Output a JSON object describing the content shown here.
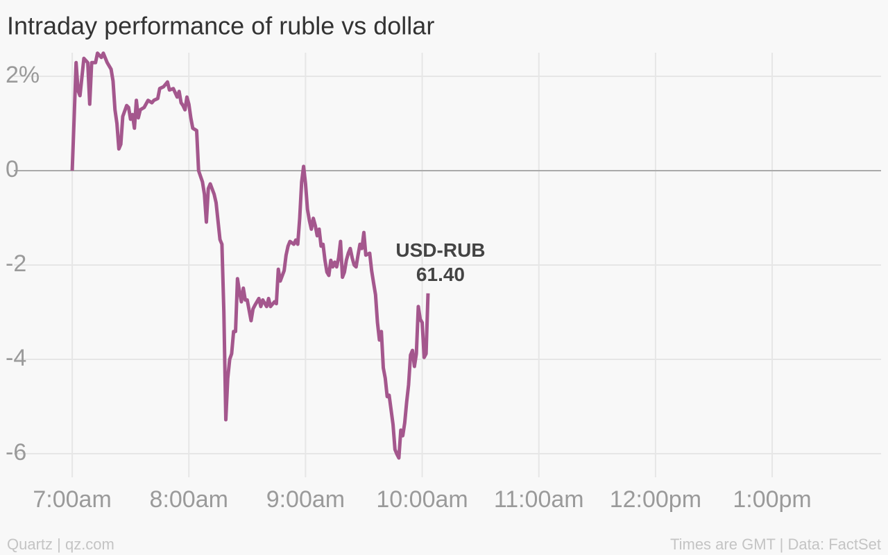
{
  "chart_data": {
    "type": "line",
    "title": "Intraday performance of ruble vs dollar",
    "footer_left": "Quartz | qz.com",
    "footer_right": "Times are GMT | Data: FactSet",
    "x": [
      420,
      421,
      422,
      423,
      424,
      426,
      428,
      429,
      430,
      432,
      433,
      435,
      436,
      438,
      440,
      441,
      442,
      443,
      444,
      445,
      446,
      448,
      449,
      450,
      451,
      452,
      453,
      454,
      455,
      457,
      459,
      461,
      462,
      464,
      465,
      467,
      469,
      470,
      472,
      474,
      475,
      476,
      477,
      478,
      479,
      480,
      481,
      482,
      484,
      485,
      487,
      488,
      489,
      490,
      491,
      493,
      494,
      496,
      497,
      498,
      499,
      500,
      501,
      502,
      503,
      504,
      505,
      506,
      507,
      508,
      509,
      510,
      512,
      513,
      514,
      516,
      517,
      518,
      520,
      521,
      522,
      524,
      525,
      526,
      527,
      529,
      530,
      531,
      532,
      534,
      535,
      536,
      537,
      538,
      539,
      540,
      541,
      542,
      543,
      544,
      545,
      546,
      547,
      548,
      549,
      550,
      551,
      552,
      553,
      554,
      555,
      556,
      557,
      558,
      559,
      560,
      561,
      562,
      563,
      564,
      565,
      566,
      567,
      568,
      569,
      570,
      571,
      573,
      574,
      575,
      576,
      577,
      578,
      579,
      580,
      581,
      582,
      583,
      585,
      586,
      587,
      588,
      589,
      590,
      591,
      592,
      593,
      594,
      595,
      596,
      597,
      598,
      599,
      600,
      601,
      602,
      603
    ],
    "series": [
      {
        "name": "USD-RUB",
        "color": "#a4578d",
        "values": [
          0,
          1.12,
          2.29,
          1.7,
          1.59,
          2.38,
          2.29,
          1.41,
          2.29,
          2.29,
          2.49,
          2.4,
          2.49,
          2.29,
          2.15,
          1.9,
          1.29,
          1.0,
          0.46,
          0.56,
          1.15,
          1.38,
          1.34,
          1.09,
          1.19,
          0.9,
          1.49,
          1.12,
          1.29,
          1.34,
          1.49,
          1.44,
          1.49,
          1.53,
          1.74,
          1.78,
          1.88,
          1.71,
          1.74,
          1.56,
          1.68,
          1.44,
          1.38,
          1.29,
          1.56,
          1.41,
          1.12,
          0.9,
          0.85,
          0,
          -0.24,
          -0.5,
          -1.09,
          -0.38,
          -0.28,
          -0.5,
          -0.68,
          -1.46,
          -1.56,
          -3.0,
          -5.28,
          -4.4,
          -4.0,
          -3.88,
          -3.41,
          -3.41,
          -2.29,
          -2.56,
          -2.78,
          -2.49,
          -2.74,
          -2.74,
          -3.18,
          -2.93,
          -2.85,
          -2.71,
          -2.88,
          -2.74,
          -2.88,
          -2.71,
          -2.88,
          -2.78,
          -2.82,
          -2.09,
          -2.34,
          -2.12,
          -1.79,
          -1.6,
          -1.5,
          -1.56,
          -1.47,
          -1.56,
          -1.01,
          -0.24,
          0.09,
          -0.28,
          -0.82,
          -1.06,
          -1.24,
          -1.01,
          -1.16,
          -1.38,
          -1.24,
          -1.6,
          -1.56,
          -1.9,
          -2.15,
          -2.22,
          -1.9,
          -2.04,
          -1.94,
          -2.04,
          -1.85,
          -1.5,
          -2.26,
          -2.15,
          -1.9,
          -1.75,
          -1.65,
          -1.85,
          -2.0,
          -2.04,
          -1.79,
          -1.56,
          -1.65,
          -1.31,
          -1.79,
          -1.75,
          -2.12,
          -2.38,
          -2.63,
          -3.22,
          -3.59,
          -3.41,
          -4.18,
          -4.4,
          -4.79,
          -4.76,
          -5.38,
          -5.91,
          -6.01,
          -6.09,
          -5.5,
          -5.62,
          -5.35,
          -4.91,
          -4.54,
          -3.91,
          -3.81,
          -4.15,
          -3.88,
          -2.88,
          -3.15,
          -3.22,
          -3.96,
          -3.88,
          -2.6
        ]
      }
    ],
    "annotation": {
      "label": "USD-RUB",
      "value_label": "61.40"
    },
    "xlim": [
      390,
      836
    ],
    "xticks": [
      {
        "value": 420,
        "label": "7:00am"
      },
      {
        "value": 480,
        "label": "8:00am"
      },
      {
        "value": 540,
        "label": "9:00am"
      },
      {
        "value": 600,
        "label": "10:00am"
      },
      {
        "value": 660,
        "label": "11:00am"
      },
      {
        "value": 720,
        "label": "12:00pm"
      },
      {
        "value": 780,
        "label": "1:00pm"
      }
    ],
    "ylim": [
      -6.5,
      2.5
    ],
    "yticks": [
      {
        "value": 2,
        "label": "2%"
      },
      0,
      -2,
      -4,
      -6
    ],
    "grid": true
  }
}
